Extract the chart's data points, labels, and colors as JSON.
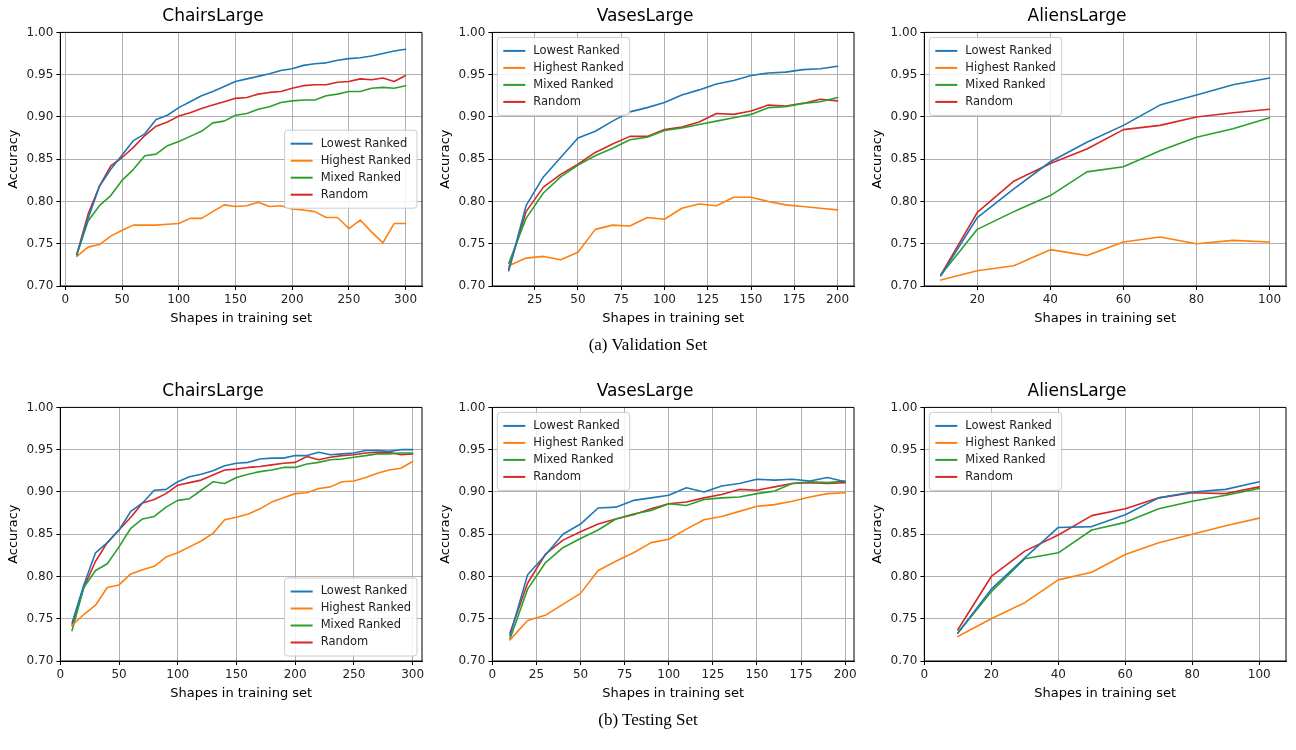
{
  "chart_data": [
    {
      "type": "line",
      "title": "ChairsLarge",
      "xlabel": "Shapes in training set",
      "ylabel": "Accuracy",
      "x": [
        10,
        20,
        30,
        40,
        50,
        60,
        70,
        80,
        90,
        100,
        110,
        120,
        130,
        140,
        150,
        160,
        170,
        180,
        190,
        200,
        210,
        220,
        230,
        240,
        250,
        260,
        270,
        280,
        290,
        300
      ],
      "xlim": [
        -4.5,
        314.5
      ],
      "xticks": [
        0,
        50,
        100,
        150,
        200,
        250,
        300
      ],
      "ylim": [
        0.7,
        1.0
      ],
      "yticks": [
        {
          "value": 0.7,
          "label": "0.70"
        },
        {
          "value": 0.75,
          "label": "0.75"
        },
        {
          "value": 0.8,
          "label": "0.80"
        },
        {
          "value": 0.85,
          "label": "0.85"
        },
        {
          "value": 0.9,
          "label": "0.90"
        },
        {
          "value": 0.95,
          "label": "0.95"
        },
        {
          "value": 1.0,
          "label": "1.00"
        }
      ],
      "grid": true,
      "legend": "right",
      "marker": "none",
      "line_style": "solid",
      "series": [
        {
          "name": "Lowest Ranked",
          "color": "#1f77b4",
          "values": [
            0.737,
            0.78,
            0.818,
            0.838,
            0.855,
            0.872,
            0.88,
            0.897,
            0.902,
            0.911,
            0.918,
            0.925,
            0.93,
            0.936,
            0.942,
            0.945,
            0.948,
            0.951,
            0.955,
            0.957,
            0.961,
            0.963,
            0.964,
            0.967,
            0.969,
            0.97,
            0.972,
            0.975,
            0.978,
            0.98
          ]
        },
        {
          "name": "Highest Ranked",
          "color": "#ff7f0e",
          "values": [
            0.735,
            0.746,
            0.749,
            0.759,
            0.766,
            0.772,
            0.772,
            0.772,
            0.773,
            0.774,
            0.78,
            0.78,
            0.788,
            0.796,
            0.794,
            0.795,
            0.799,
            0.794,
            0.795,
            0.791,
            0.79,
            0.788,
            0.781,
            0.781,
            0.768,
            0.778,
            0.764,
            0.751,
            0.774,
            0.774
          ]
        },
        {
          "name": "Mixed Ranked",
          "color": "#2ca02c",
          "values": [
            0.737,
            0.777,
            0.795,
            0.807,
            0.825,
            0.838,
            0.854,
            0.856,
            0.866,
            0.871,
            0.877,
            0.883,
            0.893,
            0.895,
            0.902,
            0.904,
            0.909,
            0.912,
            0.917,
            0.919,
            0.92,
            0.92,
            0.925,
            0.927,
            0.93,
            0.93,
            0.934,
            0.935,
            0.934,
            0.937
          ]
        },
        {
          "name": "Random",
          "color": "#d62728",
          "values": [
            0.737,
            0.785,
            0.818,
            0.842,
            0.852,
            0.864,
            0.878,
            0.889,
            0.894,
            0.901,
            0.905,
            0.91,
            0.914,
            0.918,
            0.922,
            0.923,
            0.927,
            0.929,
            0.93,
            0.934,
            0.937,
            0.938,
            0.938,
            0.941,
            0.942,
            0.945,
            0.944,
            0.946,
            0.942,
            0.949
          ]
        }
      ]
    },
    {
      "type": "line",
      "title": "VasesLarge",
      "xlabel": "Shapes in training set",
      "ylabel": "Accuracy",
      "annotations": [
        "(a) Validation Set"
      ],
      "x": [
        10,
        20,
        30,
        40,
        50,
        60,
        70,
        80,
        90,
        100,
        110,
        120,
        130,
        140,
        150,
        160,
        170,
        180,
        190,
        200
      ],
      "xlim": [
        0.5,
        209.5
      ],
      "xticks": [
        25,
        50,
        75,
        100,
        125,
        150,
        175,
        200
      ],
      "ylim": [
        0.7,
        1.0
      ],
      "yticks": [
        {
          "value": 0.7,
          "label": "0.70"
        },
        {
          "value": 0.75,
          "label": "0.75"
        },
        {
          "value": 0.8,
          "label": "0.80"
        },
        {
          "value": 0.85,
          "label": "0.85"
        },
        {
          "value": 0.9,
          "label": "0.90"
        },
        {
          "value": 0.95,
          "label": "0.95"
        },
        {
          "value": 1.0,
          "label": "1.00"
        }
      ],
      "grid": true,
      "legend": "top left",
      "marker": "none",
      "line_style": "solid",
      "series": [
        {
          "name": "Lowest Ranked",
          "color": "#1f77b4",
          "values": [
            0.718,
            0.795,
            0.829,
            0.852,
            0.875,
            0.883,
            0.895,
            0.906,
            0.911,
            0.917,
            0.926,
            0.932,
            0.939,
            0.943,
            0.949,
            0.952,
            0.953,
            0.956,
            0.957,
            0.96
          ]
        },
        {
          "name": "Highest Ranked",
          "color": "#ff7f0e",
          "values": [
            0.724,
            0.733,
            0.735,
            0.731,
            0.74,
            0.767,
            0.772,
            0.771,
            0.781,
            0.779,
            0.792,
            0.797,
            0.795,
            0.805,
            0.805,
            0.8,
            0.796,
            0.794,
            0.792,
            0.79
          ]
        },
        {
          "name": "Mixed Ranked",
          "color": "#2ca02c",
          "values": [
            0.727,
            0.78,
            0.81,
            0.829,
            0.843,
            0.854,
            0.863,
            0.873,
            0.876,
            0.884,
            0.887,
            0.891,
            0.895,
            0.899,
            0.903,
            0.911,
            0.912,
            0.916,
            0.918,
            0.923
          ]
        },
        {
          "name": "Random",
          "color": "#d62728",
          "values": [
            0.72,
            0.788,
            0.817,
            0.832,
            0.844,
            0.858,
            0.868,
            0.877,
            0.877,
            0.885,
            0.888,
            0.894,
            0.904,
            0.903,
            0.907,
            0.914,
            0.913,
            0.916,
            0.921,
            0.919
          ]
        }
      ]
    },
    {
      "type": "line",
      "title": "AliensLarge",
      "xlabel": "Shapes in training set",
      "ylabel": "Accuracy",
      "x": [
        10,
        20,
        30,
        40,
        50,
        60,
        70,
        80,
        90,
        100
      ],
      "xlim": [
        5.5,
        104.5
      ],
      "xticks": [
        20,
        40,
        60,
        80,
        100
      ],
      "ylim": [
        0.7,
        1.0
      ],
      "yticks": [
        {
          "value": 0.7,
          "label": "0.70"
        },
        {
          "value": 0.75,
          "label": "0.75"
        },
        {
          "value": 0.8,
          "label": "0.80"
        },
        {
          "value": 0.85,
          "label": "0.85"
        },
        {
          "value": 0.9,
          "label": "0.90"
        },
        {
          "value": 0.95,
          "label": "0.95"
        },
        {
          "value": 1.0,
          "label": "1.00"
        }
      ],
      "grid": true,
      "legend": "top left",
      "marker": "none",
      "line_style": "solid",
      "series": [
        {
          "name": "Lowest Ranked",
          "color": "#1f77b4",
          "values": [
            0.712,
            0.781,
            0.815,
            0.847,
            0.87,
            0.89,
            0.914,
            0.926,
            0.938,
            0.946
          ]
        },
        {
          "name": "Highest Ranked",
          "color": "#ff7f0e",
          "values": [
            0.707,
            0.718,
            0.724,
            0.743,
            0.736,
            0.752,
            0.758,
            0.75,
            0.754,
            0.752
          ]
        },
        {
          "name": "Mixed Ranked",
          "color": "#2ca02c",
          "values": [
            0.713,
            0.767,
            0.788,
            0.807,
            0.835,
            0.841,
            0.86,
            0.876,
            0.886,
            0.899
          ]
        },
        {
          "name": "Random",
          "color": "#d62728",
          "values": [
            0.713,
            0.787,
            0.824,
            0.845,
            0.862,
            0.885,
            0.89,
            0.9,
            0.905,
            0.909
          ]
        }
      ]
    },
    {
      "type": "line",
      "title": "ChairsLarge",
      "xlabel": "Shapes in training set",
      "ylabel": "Accuracy",
      "x": [
        10,
        20,
        30,
        40,
        50,
        60,
        70,
        80,
        90,
        100,
        110,
        120,
        130,
        140,
        150,
        160,
        170,
        180,
        190,
        200,
        210,
        220,
        230,
        240,
        250,
        260,
        270,
        280,
        290,
        300
      ],
      "xlim": [
        0,
        308
      ],
      "xticks": [
        0,
        50,
        100,
        150,
        200,
        250,
        300
      ],
      "ylim": [
        0.7,
        1.0
      ],
      "yticks": [
        {
          "value": 0.7,
          "label": "0.70"
        },
        {
          "value": 0.75,
          "label": "0.75"
        },
        {
          "value": 0.8,
          "label": "0.80"
        },
        {
          "value": 0.85,
          "label": "0.85"
        },
        {
          "value": 0.9,
          "label": "0.90"
        },
        {
          "value": 0.95,
          "label": "0.95"
        },
        {
          "value": 1.0,
          "label": "1.00"
        }
      ],
      "grid": true,
      "legend": "bottom right",
      "marker": "none",
      "line_style": "solid",
      "series": [
        {
          "name": "Lowest Ranked",
          "color": "#1f77b4",
          "values": [
            0.745,
            0.79,
            0.828,
            0.84,
            0.855,
            0.877,
            0.887,
            0.902,
            0.903,
            0.912,
            0.918,
            0.921,
            0.925,
            0.931,
            0.934,
            0.935,
            0.939,
            0.94,
            0.94,
            0.943,
            0.943,
            0.947,
            0.944,
            0.945,
            0.946,
            0.949,
            0.949,
            0.948,
            0.95,
            0.95
          ]
        },
        {
          "name": "Highest Ranked",
          "color": "#ff7f0e",
          "values": [
            0.742,
            0.755,
            0.766,
            0.787,
            0.79,
            0.803,
            0.808,
            0.812,
            0.823,
            0.828,
            0.835,
            0.842,
            0.851,
            0.867,
            0.87,
            0.874,
            0.88,
            0.888,
            0.893,
            0.898,
            0.899,
            0.904,
            0.906,
            0.912,
            0.913,
            0.917,
            0.922,
            0.926,
            0.928,
            0.936
          ]
        },
        {
          "name": "Mixed Ranked",
          "color": "#2ca02c",
          "values": [
            0.736,
            0.787,
            0.807,
            0.815,
            0.835,
            0.857,
            0.868,
            0.871,
            0.882,
            0.89,
            0.892,
            0.902,
            0.912,
            0.91,
            0.917,
            0.921,
            0.924,
            0.926,
            0.929,
            0.929,
            0.933,
            0.935,
            0.938,
            0.939,
            0.941,
            0.943,
            0.945,
            0.945,
            0.946,
            0.946
          ]
        },
        {
          "name": "Random",
          "color": "#d62728",
          "values": [
            0.742,
            0.787,
            0.818,
            0.84,
            0.855,
            0.87,
            0.887,
            0.891,
            0.898,
            0.908,
            0.911,
            0.914,
            0.92,
            0.926,
            0.927,
            0.929,
            0.93,
            0.932,
            0.934,
            0.935,
            0.942,
            0.938,
            0.941,
            0.943,
            0.944,
            0.946,
            0.947,
            0.947,
            0.944,
            0.945
          ]
        }
      ]
    },
    {
      "type": "line",
      "title": "VasesLarge",
      "xlabel": "Shapes in training set",
      "ylabel": "Accuracy",
      "annotations": [
        "(b) Testing Set"
      ],
      "x": [
        10,
        20,
        30,
        40,
        50,
        60,
        70,
        80,
        90,
        100,
        110,
        120,
        130,
        140,
        150,
        160,
        170,
        180,
        190,
        200
      ],
      "xlim": [
        0,
        205
      ],
      "xticks": [
        0,
        25,
        50,
        75,
        100,
        125,
        150,
        175,
        200
      ],
      "ylim": [
        0.7,
        1.0
      ],
      "yticks": [
        {
          "value": 0.7,
          "label": "0.70"
        },
        {
          "value": 0.75,
          "label": "0.75"
        },
        {
          "value": 0.8,
          "label": "0.80"
        },
        {
          "value": 0.85,
          "label": "0.85"
        },
        {
          "value": 0.9,
          "label": "0.90"
        },
        {
          "value": 0.95,
          "label": "0.95"
        },
        {
          "value": 1.0,
          "label": "1.00"
        }
      ],
      "grid": true,
      "legend": "top left",
      "marker": "none",
      "line_style": "solid",
      "series": [
        {
          "name": "Lowest Ranked",
          "color": "#1f77b4",
          "values": [
            0.73,
            0.802,
            0.825,
            0.85,
            0.862,
            0.881,
            0.882,
            0.89,
            0.893,
            0.896,
            0.905,
            0.9,
            0.907,
            0.91,
            0.915,
            0.914,
            0.915,
            0.913,
            0.917,
            0.912
          ]
        },
        {
          "name": "Highest Ranked",
          "color": "#ff7f0e",
          "values": [
            0.725,
            0.748,
            0.754,
            0.767,
            0.78,
            0.807,
            0.818,
            0.828,
            0.84,
            0.844,
            0.856,
            0.867,
            0.871,
            0.877,
            0.883,
            0.885,
            0.889,
            0.894,
            0.898,
            0.899
          ]
        },
        {
          "name": "Mixed Ranked",
          "color": "#2ca02c",
          "values": [
            0.726,
            0.785,
            0.816,
            0.834,
            0.845,
            0.855,
            0.868,
            0.874,
            0.878,
            0.886,
            0.884,
            0.891,
            0.893,
            0.894,
            0.898,
            0.901,
            0.91,
            0.912,
            0.911,
            0.913
          ]
        },
        {
          "name": "Random",
          "color": "#d62728",
          "values": [
            0.733,
            0.792,
            0.826,
            0.843,
            0.853,
            0.862,
            0.868,
            0.873,
            0.88,
            0.886,
            0.888,
            0.893,
            0.897,
            0.903,
            0.902,
            0.906,
            0.91,
            0.911,
            0.91,
            0.911
          ]
        }
      ]
    },
    {
      "type": "line",
      "title": "AliensLarge",
      "xlabel": "Shapes in training set",
      "ylabel": "Accuracy",
      "x": [
        10,
        20,
        30,
        40,
        50,
        60,
        70,
        80,
        90,
        100
      ],
      "xlim": [
        0,
        108
      ],
      "xticks": [
        0,
        20,
        40,
        60,
        80,
        100
      ],
      "ylim": [
        0.7,
        1.0
      ],
      "yticks": [
        {
          "value": 0.7,
          "label": "0.70"
        },
        {
          "value": 0.75,
          "label": "0.75"
        },
        {
          "value": 0.8,
          "label": "0.80"
        },
        {
          "value": 0.85,
          "label": "0.85"
        },
        {
          "value": 0.9,
          "label": "0.90"
        },
        {
          "value": 0.95,
          "label": "0.95"
        },
        {
          "value": 1.0,
          "label": "1.00"
        }
      ],
      "grid": true,
      "legend": "top left",
      "marker": "none",
      "line_style": "solid",
      "series": [
        {
          "name": "Lowest Ranked",
          "color": "#1f77b4",
          "values": [
            0.733,
            0.785,
            0.822,
            0.858,
            0.859,
            0.873,
            0.893,
            0.9,
            0.903,
            0.912
          ]
        },
        {
          "name": "Highest Ranked",
          "color": "#ff7f0e",
          "values": [
            0.729,
            0.75,
            0.769,
            0.796,
            0.805,
            0.826,
            0.84,
            0.85,
            0.86,
            0.869
          ]
        },
        {
          "name": "Mixed Ranked",
          "color": "#2ca02c",
          "values": [
            0.733,
            0.782,
            0.821,
            0.828,
            0.855,
            0.864,
            0.88,
            0.889,
            0.896,
            0.904
          ]
        },
        {
          "name": "Random",
          "color": "#d62728",
          "values": [
            0.737,
            0.8,
            0.83,
            0.849,
            0.872,
            0.88,
            0.893,
            0.899,
            0.898,
            0.906
          ]
        }
      ]
    }
  ]
}
